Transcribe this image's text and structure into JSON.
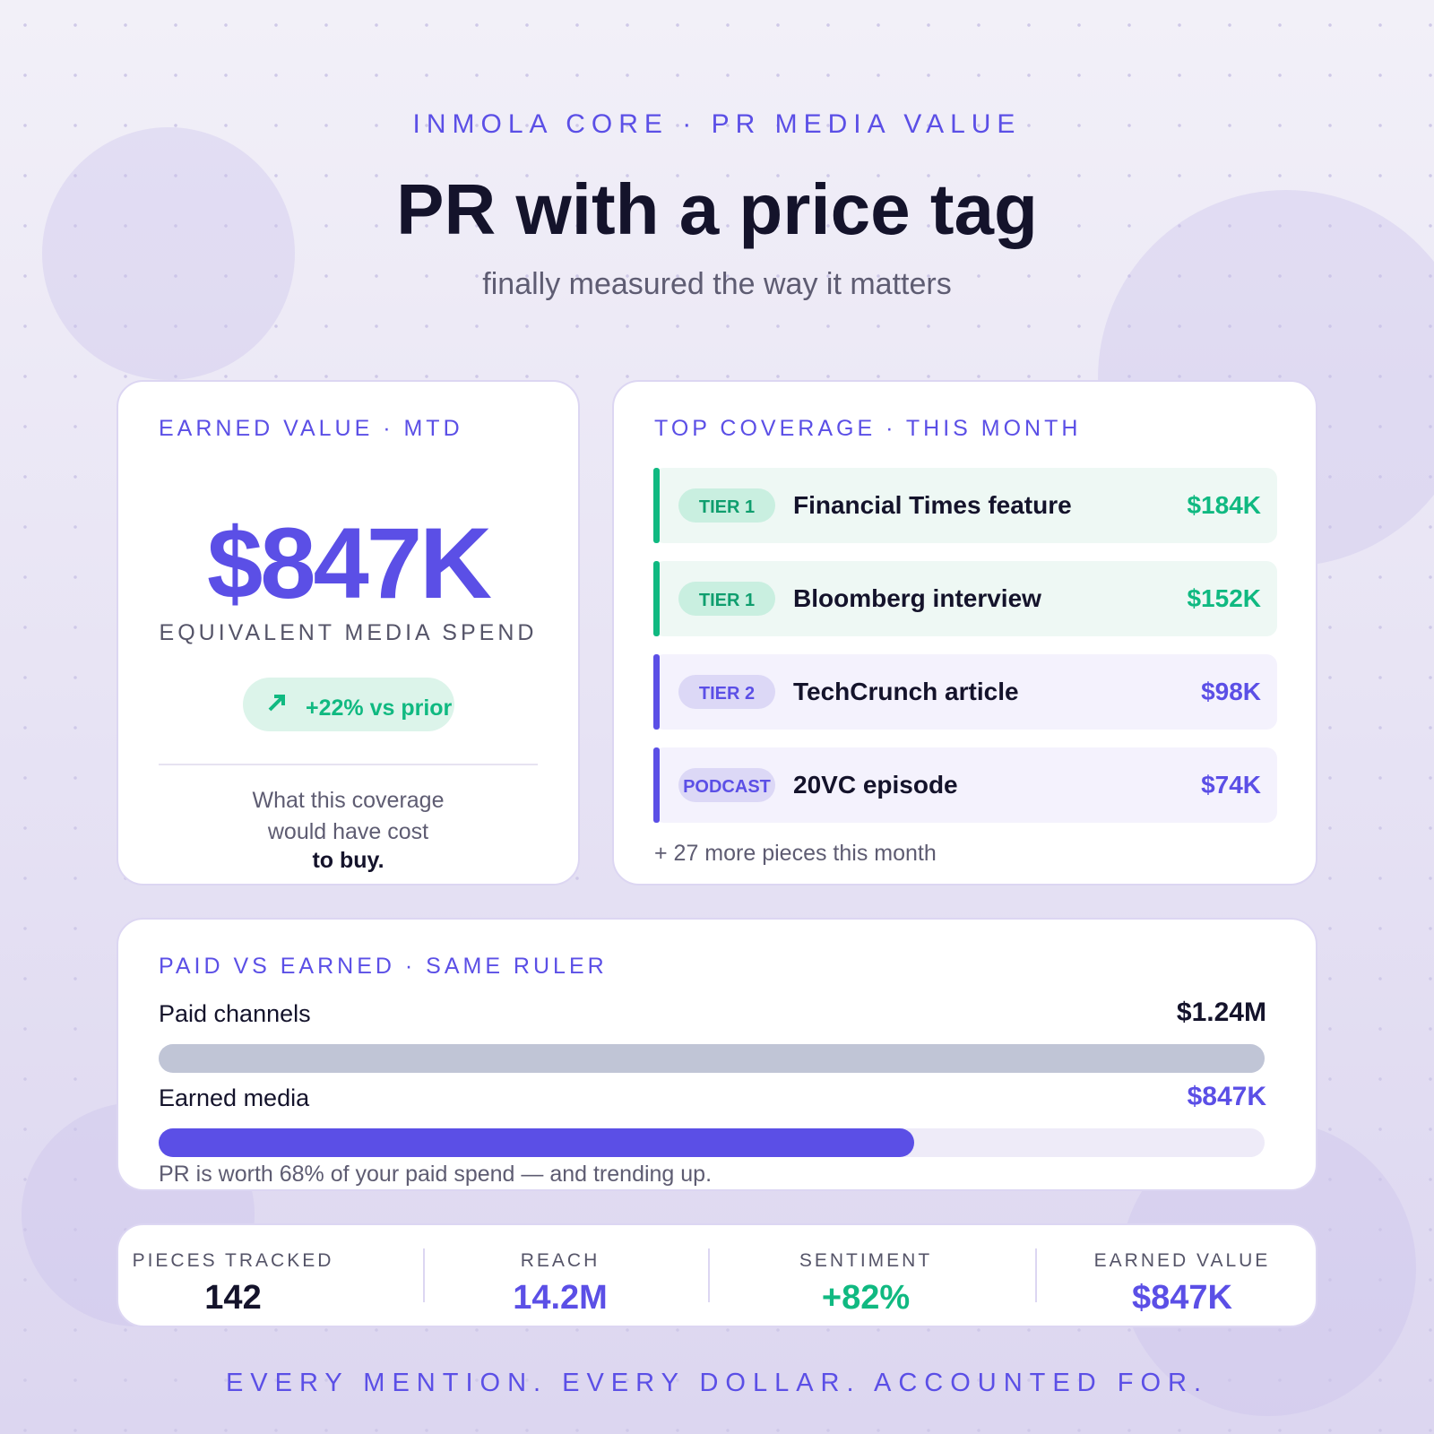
{
  "header": {
    "eyebrow": "INMOLA CORE · PR MEDIA VALUE",
    "title": "PR with a price tag",
    "subtitle": "finally measured the way it matters"
  },
  "earned_card": {
    "label": "EARNED VALUE · MTD",
    "value": "$847K",
    "caption": "EQUIVALENT MEDIA SPEND",
    "change": "+22% vs prior",
    "note": "What this coverage would have cost",
    "note_bold": "to buy."
  },
  "coverage": {
    "label": "TOP COVERAGE · THIS MONTH",
    "items": [
      {
        "tier": "TIER 1",
        "title": "Financial Times feature",
        "value": "$184K",
        "color": "#10b981"
      },
      {
        "tier": "TIER 1",
        "title": "Bloomberg interview",
        "value": "$152K",
        "color": "#10b981"
      },
      {
        "tier": "TIER 2",
        "title": "TechCrunch article",
        "value": "$98K",
        "color": "#5b4fe6"
      },
      {
        "tier": "PODCAST",
        "title": "20VC episode",
        "value": "$74K",
        "color": "#5b4fe6"
      }
    ],
    "more": "+ 27 more pieces this month"
  },
  "chart_data": {
    "type": "bar",
    "title": "PAID VS EARNED · SAME RULER",
    "categories": [
      "Paid channels",
      "Earned media"
    ],
    "values": [
      1240000,
      847000
    ],
    "value_labels": [
      "$1.24M",
      "$847K"
    ],
    "colors": [
      "#c0c5d6",
      "#5b4fe6"
    ],
    "note": "PR is worth 68% of your paid spend — and trending up."
  },
  "stats": [
    {
      "label": "PIECES TRACKED",
      "value": "142",
      "color": "#14132b"
    },
    {
      "label": "REACH",
      "value": "14.2M",
      "color": "#5b4fe6"
    },
    {
      "label": "SENTIMENT",
      "value": "+82%",
      "color": "#10b981"
    },
    {
      "label": "EARNED VALUE",
      "value": "$847K",
      "color": "#5b4fe6"
    }
  ],
  "footer": "EVERY MENTION. EVERY DOLLAR. ACCOUNTED FOR."
}
